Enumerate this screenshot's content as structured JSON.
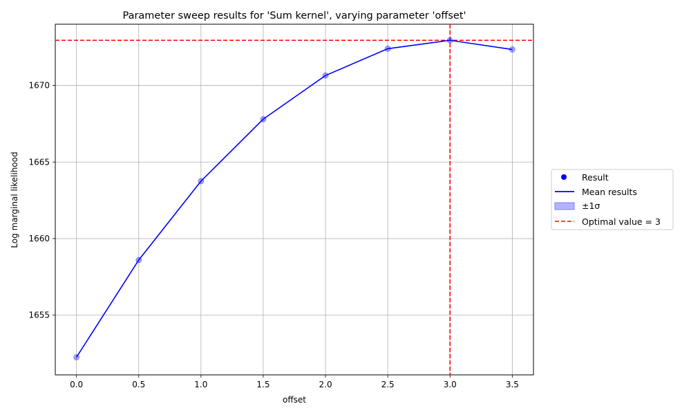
{
  "chart_data": {
    "type": "line",
    "title": "Parameter sweep results for 'Sum kernel', varying parameter 'offset'",
    "xlabel": "offset",
    "ylabel": "Log marginal likelihood",
    "xlim": [
      -0.17,
      3.67
    ],
    "ylim": [
      1651.1,
      1674.0
    ],
    "xticks": [
      "0.0",
      "0.5",
      "1.0",
      "1.5",
      "2.0",
      "2.5",
      "3.0",
      "3.5"
    ],
    "yticks": [
      "1655",
      "1660",
      "1665",
      "1670"
    ],
    "grid": true,
    "legend_placement": "center-right outside",
    "x": [
      0.0,
      0.5,
      1.0,
      1.5,
      2.0,
      2.5,
      3.0,
      3.5
    ],
    "series": [
      {
        "name": "Result",
        "kind": "scatter",
        "color": "#0000ff",
        "values": [
          1652.25,
          1658.6,
          1663.75,
          1667.8,
          1670.65,
          1672.4,
          1672.95,
          1672.35
        ]
      },
      {
        "name": "Mean results",
        "kind": "line",
        "color": "#0000ff",
        "values": [
          1652.25,
          1658.6,
          1663.75,
          1667.8,
          1670.65,
          1672.4,
          1672.95,
          1672.35
        ]
      }
    ],
    "band": {
      "name": "±1σ",
      "color": "#aaaaff"
    },
    "optimal": {
      "name": "Optimal value = 3",
      "x": 3.0,
      "y": 1672.95,
      "color": "#ff0000"
    }
  }
}
